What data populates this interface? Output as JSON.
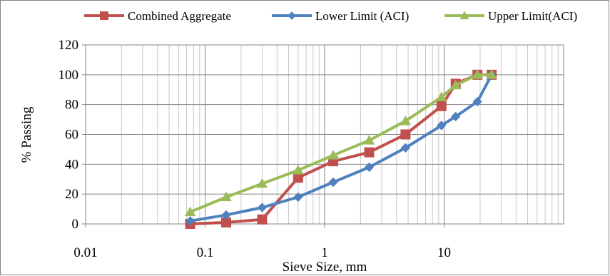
{
  "chart_data": {
    "type": "line",
    "x_scale": "log",
    "xlim": [
      0.01,
      100
    ],
    "ylim": [
      0,
      120
    ],
    "xlabel": "Sieve Size, mm",
    "ylabel": "% Passing",
    "x_tick_labels": [
      "0.01",
      "0.1",
      "1",
      "10"
    ],
    "y_ticks": [
      0,
      20,
      40,
      60,
      80,
      100,
      120
    ],
    "grid": "major and minor vertical, major horizontal",
    "legend_position": "top",
    "series": [
      {
        "name": "Combined Aggregate",
        "color": "#C0504D",
        "marker": "square",
        "x": [
          0.075,
          0.15,
          0.3,
          0.6,
          1.18,
          2.36,
          4.75,
          9.5,
          12.5,
          19,
          25
        ],
        "y": [
          0,
          1,
          3,
          31,
          42,
          48,
          60,
          79,
          94,
          100,
          100
        ]
      },
      {
        "name": "Lower Limit (ACI)",
        "color": "#4F81BD",
        "marker": "diamond",
        "x": [
          0.075,
          0.15,
          0.3,
          0.6,
          1.18,
          2.36,
          4.75,
          9.5,
          12.5,
          19,
          25
        ],
        "y": [
          2,
          6,
          11,
          18,
          28,
          38,
          51,
          66,
          72,
          82,
          100
        ]
      },
      {
        "name": "Upper Limit(ACI)",
        "color": "#9BBB59",
        "marker": "triangle",
        "x": [
          0.075,
          0.15,
          0.3,
          0.6,
          1.18,
          2.36,
          4.75,
          9.5,
          12.5,
          19,
          25
        ],
        "y": [
          8,
          18,
          27,
          36,
          46,
          56,
          69,
          85,
          93,
          100,
          100
        ]
      }
    ]
  }
}
